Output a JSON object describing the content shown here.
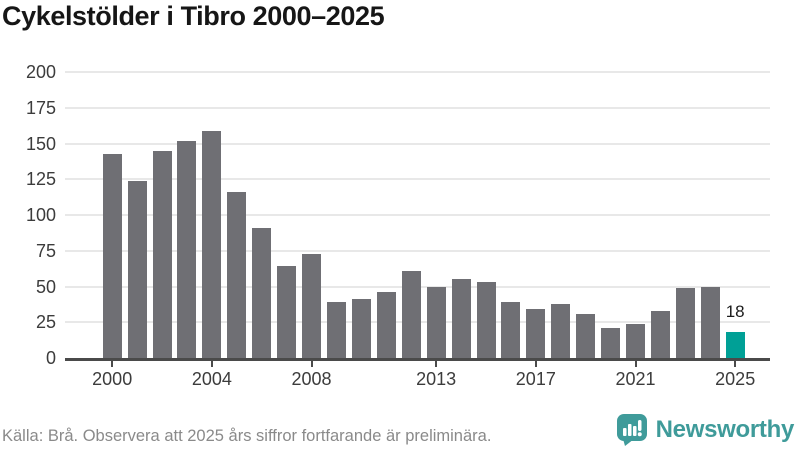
{
  "chart_data": {
    "type": "bar",
    "title": "Cykelstölder i Tibro 2000–2025",
    "categories": [
      "2000",
      "2001",
      "2002",
      "2003",
      "2004",
      "2005",
      "2006",
      "2007",
      "2008",
      "2009",
      "2010",
      "2011",
      "2012",
      "2013",
      "2014",
      "2015",
      "2016",
      "2017",
      "2018",
      "2019",
      "2020",
      "2021",
      "2022",
      "2023",
      "2024",
      "2025"
    ],
    "values": [
      143,
      124,
      145,
      152,
      159,
      116,
      91,
      64,
      73,
      39,
      41,
      46,
      61,
      50,
      55,
      53,
      39,
      34,
      38,
      31,
      21,
      24,
      33,
      49,
      50,
      18
    ],
    "xlabel": "",
    "ylabel": "",
    "ylim": [
      0,
      200
    ],
    "yticks": [
      0,
      25,
      50,
      75,
      100,
      125,
      150,
      175,
      200
    ],
    "xticks": [
      "2000",
      "2004",
      "2008",
      "2013",
      "2017",
      "2021",
      "2025"
    ],
    "grid": "horizontal",
    "legend": "none",
    "highlight_index": 25,
    "annotation": {
      "index": 25,
      "label": "18"
    },
    "colors": {
      "bar": "#6f6f74",
      "highlight": "#00a096",
      "grid": "#e8e8e8",
      "axis": "#4a4a4a",
      "tick_label": "#3c3c3c",
      "title": "#161616"
    }
  },
  "footer": {
    "source": "Källa: Brå. Observera att 2025 års siffror fortfarande är preliminära.",
    "brand": "Newsworthy",
    "brand_color": "#3f9b9a"
  }
}
